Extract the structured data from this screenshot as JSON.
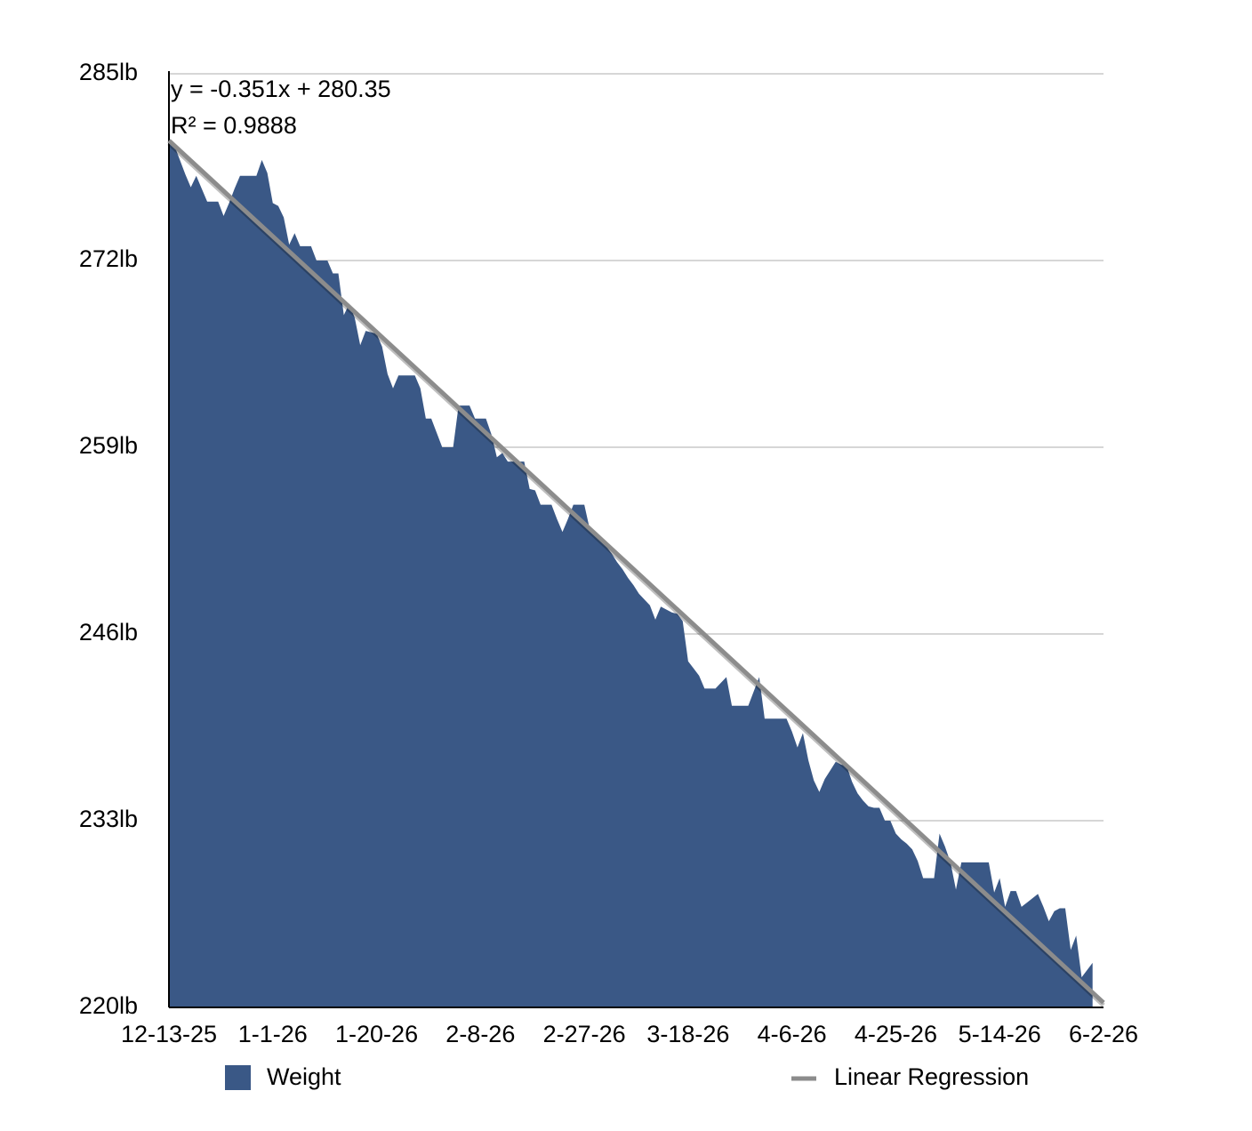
{
  "chart_data": {
    "type": "area",
    "categories": [
      "12-13-25",
      null,
      null,
      null,
      null,
      null,
      null,
      null,
      null,
      null,
      null,
      null,
      null,
      null,
      null,
      null,
      null,
      null,
      null,
      "1-1-26",
      null,
      null,
      null,
      null,
      null,
      null,
      null,
      null,
      null,
      null,
      null,
      null,
      null,
      null,
      null,
      null,
      null,
      null,
      "1-20-26",
      null,
      null,
      null,
      null,
      null,
      null,
      null,
      null,
      null,
      null,
      null,
      null,
      null,
      null,
      null,
      null,
      null,
      null,
      "2-8-26",
      null,
      null,
      null,
      null,
      null,
      null,
      null,
      null,
      null,
      null,
      null,
      null,
      null,
      null,
      null,
      null,
      null,
      null,
      "2-27-26",
      null,
      null,
      null,
      null,
      null,
      null,
      null,
      null,
      null,
      null,
      null,
      null,
      null,
      null,
      null,
      null,
      null,
      null,
      "3-18-26",
      null,
      null,
      null,
      null,
      null,
      null,
      null,
      null,
      null,
      null,
      null,
      null,
      null,
      null,
      null,
      null,
      null,
      null,
      "4-6-26",
      null,
      null,
      null,
      null,
      null,
      null,
      null,
      null,
      null,
      null,
      null,
      null,
      null,
      null,
      null,
      null,
      null,
      null,
      "4-25-26",
      null,
      null,
      null,
      null,
      null,
      null,
      null,
      null,
      null,
      null,
      null,
      null,
      null,
      null,
      null,
      null,
      null,
      null,
      "5-14-26",
      null,
      null,
      null,
      null,
      null,
      null,
      null,
      null,
      null,
      null,
      null,
      null,
      null,
      null,
      null,
      null,
      null,
      null,
      "6-2-26"
    ],
    "series": [
      {
        "name": "Weight",
        "color": "#3a5886",
        "values": [
          280.5,
          280.0,
          279.0,
          278.0,
          277.1,
          277.9,
          277.0,
          276.1,
          276.1,
          276.1,
          275.1,
          276.0,
          277.0,
          277.9,
          277.9,
          277.9,
          277.9,
          279.0,
          278.1,
          276.0,
          275.8,
          275.0,
          273.1,
          273.9,
          273.0,
          273.0,
          273.0,
          272.0,
          272.0,
          272.0,
          271.1,
          271.1,
          268.2,
          269.0,
          268.0,
          266.1,
          267.1,
          267.0,
          266.9,
          266.0,
          264.1,
          263.1,
          264.0,
          264.0,
          264.0,
          264.0,
          263.1,
          261.0,
          261.0,
          260.0,
          259.0,
          259.0,
          259.0,
          261.9,
          261.9,
          261.9,
          261.0,
          261.0,
          261.0,
          259.9,
          258.3,
          258.6,
          258.0,
          258.0,
          258.0,
          258.0,
          256.1,
          256.0,
          255.0,
          255.0,
          255.0,
          254.0,
          253.1,
          254.0,
          255.0,
          255.0,
          255.0,
          253.3,
          252.9,
          252.5,
          252.1,
          251.6,
          251.0,
          250.5,
          249.9,
          249.4,
          248.8,
          248.4,
          248.0,
          247.0,
          247.9,
          247.7,
          247.5,
          247.4,
          246.9,
          244.1,
          243.6,
          243.1,
          242.2,
          242.2,
          242.2,
          242.6,
          243.0,
          241.0,
          241.0,
          241.0,
          241.0,
          242.0,
          243.0,
          240.1,
          240.1,
          240.1,
          240.1,
          240.1,
          239.2,
          238.1,
          239.1,
          237.2,
          235.8,
          235.0,
          235.9,
          236.5,
          237.1,
          236.9,
          236.8,
          235.7,
          234.9,
          234.4,
          234.0,
          233.9,
          233.9,
          233.0,
          233.0,
          232.1,
          231.7,
          231.4,
          231.0,
          230.2,
          229.0,
          229.0,
          229.0,
          232.1,
          231.2,
          230.1,
          228.2,
          230.1,
          230.1,
          230.1,
          230.1,
          230.1,
          230.1,
          228.0,
          229.0,
          227.0,
          228.1,
          228.1,
          227.0,
          227.3,
          227.6,
          227.9,
          227.0,
          226.0,
          226.7,
          226.9,
          226.9,
          224.0,
          225.0,
          222.1,
          222.6,
          223.1,
          null,
          null
        ]
      }
    ],
    "trendline": {
      "name": "Linear Regression",
      "color": "#8c8c8c",
      "slope": -0.351,
      "intercept": 280.35
    },
    "annotations": [
      "y = -0.351x + 280.35",
      "R² = 0.9888"
    ],
    "ylim": [
      220,
      285
    ],
    "yticks": [
      {
        "value": 220,
        "label": "220lb"
      },
      {
        "value": 233,
        "label": "233lb"
      },
      {
        "value": 246,
        "label": "246lb"
      },
      {
        "value": 259,
        "label": "259lb"
      },
      {
        "value": 272,
        "label": "272lb"
      },
      {
        "value": 285,
        "label": "285lb"
      }
    ],
    "grid": true
  }
}
